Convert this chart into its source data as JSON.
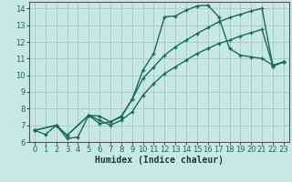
{
  "xlabel": "Humidex (Indice chaleur)",
  "ylabel": "",
  "xlim": [
    -0.5,
    23.5
  ],
  "ylim": [
    6,
    14.4
  ],
  "xticks": [
    0,
    1,
    2,
    3,
    4,
    5,
    6,
    7,
    8,
    9,
    10,
    11,
    12,
    13,
    14,
    15,
    16,
    17,
    18,
    19,
    20,
    21,
    22,
    23
  ],
  "yticks": [
    6,
    7,
    8,
    9,
    10,
    11,
    12,
    13,
    14
  ],
  "background_color": "#c8e8e4",
  "grid_color": "#a8c8c4",
  "line_color": "#1a6b5a",
  "line1_x": [
    0,
    1,
    2,
    3,
    4,
    5,
    6,
    7,
    8,
    9,
    10,
    11,
    12,
    13,
    14,
    15,
    16,
    17,
    18,
    19,
    20,
    21,
    22,
    23
  ],
  "line1_y": [
    6.7,
    6.45,
    7.0,
    6.2,
    6.3,
    7.6,
    7.1,
    7.2,
    7.5,
    8.55,
    10.3,
    11.3,
    13.5,
    13.55,
    13.9,
    14.15,
    14.2,
    13.5,
    11.6,
    11.2,
    11.1,
    11.0,
    10.6,
    10.8
  ],
  "line2_x": [
    0,
    2,
    3,
    5,
    6,
    7,
    8,
    9,
    10,
    11,
    12,
    13,
    14,
    15,
    16,
    17,
    18,
    19,
    20,
    21,
    22,
    23
  ],
  "line2_y": [
    6.7,
    7.0,
    6.4,
    7.6,
    7.55,
    7.2,
    7.55,
    8.55,
    9.8,
    10.5,
    11.2,
    11.7,
    12.1,
    12.5,
    12.85,
    13.2,
    13.45,
    13.65,
    13.85,
    14.0,
    10.55,
    10.8
  ],
  "line3_x": [
    0,
    2,
    3,
    5,
    6,
    7,
    8,
    9,
    10,
    11,
    12,
    13,
    14,
    15,
    16,
    17,
    18,
    19,
    20,
    21,
    22,
    23
  ],
  "line3_y": [
    6.7,
    7.0,
    6.4,
    7.6,
    7.3,
    7.0,
    7.3,
    7.8,
    8.8,
    9.5,
    10.1,
    10.5,
    10.9,
    11.3,
    11.6,
    11.9,
    12.1,
    12.35,
    12.55,
    12.75,
    10.55,
    10.8
  ],
  "font_size_label": 7,
  "tick_font_size": 6,
  "marker_size": 3.5,
  "linewidth": 1.0
}
